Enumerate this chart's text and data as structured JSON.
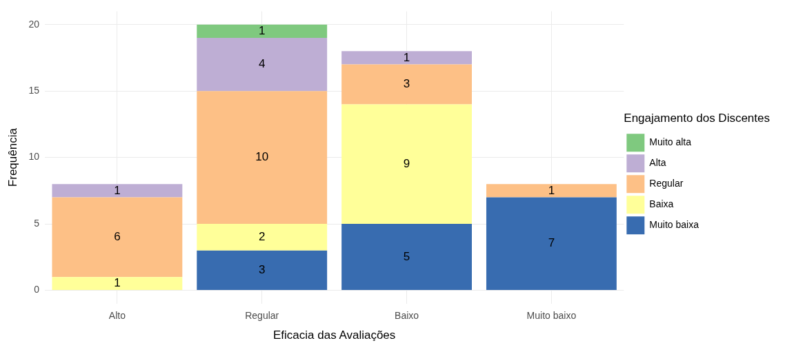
{
  "chart_data": {
    "type": "bar",
    "stacked": true,
    "xlabel": "Eficacia das Avaliações",
    "ylabel": "Frequência",
    "legend_title": "Engajamento dos Discentes",
    "legend": "right",
    "grid": true,
    "data_labels": true,
    "categories": [
      "Alto",
      "Regular",
      "Baixo",
      "Muito baixo"
    ],
    "ylim": [
      -1,
      21
    ],
    "yticks": [
      0,
      5,
      10,
      15,
      20
    ],
    "series": [
      {
        "name": "Muito baixa",
        "color": "#386cb0",
        "values": [
          null,
          3,
          5,
          7
        ]
      },
      {
        "name": "Baixa",
        "color": "#ffff99",
        "values": [
          1,
          2,
          9,
          null
        ]
      },
      {
        "name": "Regular",
        "color": "#fdc086",
        "values": [
          6,
          10,
          3,
          1
        ]
      },
      {
        "name": "Alta",
        "color": "#beaed4",
        "values": [
          1,
          4,
          1,
          null
        ]
      },
      {
        "name": "Muito alta",
        "color": "#7fc97f",
        "values": [
          null,
          1,
          null,
          null
        ]
      }
    ]
  }
}
